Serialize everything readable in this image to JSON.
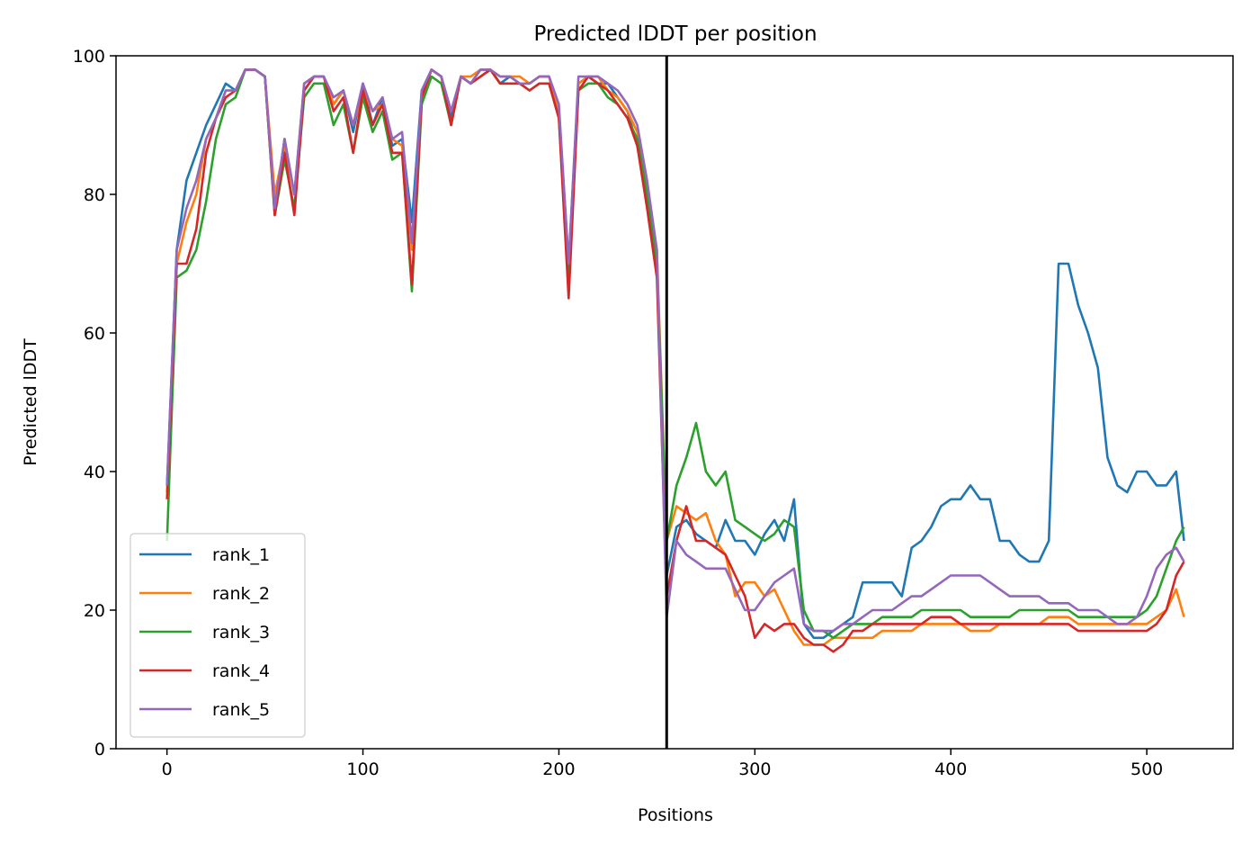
{
  "chart_data": {
    "type": "line",
    "title": "Predicted lDDT per position",
    "xlabel": "Positions",
    "ylabel": "Predicted lDDT",
    "xlim": [
      -26,
      544
    ],
    "ylim": [
      0,
      100
    ],
    "xticks": [
      0,
      100,
      200,
      300,
      400,
      500
    ],
    "yticks": [
      0,
      20,
      40,
      60,
      80,
      100
    ],
    "grid": false,
    "legend_position": "lower-left",
    "vline_x": 255,
    "x": [
      0,
      5,
      10,
      15,
      20,
      25,
      30,
      35,
      40,
      45,
      50,
      55,
      60,
      65,
      70,
      75,
      80,
      85,
      90,
      95,
      100,
      105,
      110,
      115,
      120,
      125,
      130,
      135,
      140,
      145,
      150,
      155,
      160,
      165,
      170,
      175,
      180,
      185,
      190,
      195,
      200,
      205,
      210,
      215,
      220,
      225,
      230,
      235,
      240,
      245,
      250,
      255,
      260,
      265,
      270,
      275,
      280,
      285,
      290,
      295,
      300,
      305,
      310,
      315,
      320,
      325,
      330,
      335,
      340,
      345,
      350,
      355,
      360,
      365,
      370,
      375,
      380,
      385,
      390,
      395,
      400,
      405,
      410,
      415,
      420,
      425,
      430,
      435,
      440,
      445,
      450,
      455,
      460,
      465,
      470,
      475,
      480,
      485,
      490,
      495,
      500,
      505,
      510,
      515,
      519
    ],
    "series": [
      {
        "name": "rank_1",
        "color": "#1f77b4",
        "values": [
          38,
          72,
          82,
          86,
          90,
          93,
          96,
          95,
          98,
          98,
          97,
          78,
          88,
          80,
          95,
          97,
          97,
          93,
          95,
          89,
          96,
          90,
          94,
          87,
          88,
          76,
          95,
          98,
          97,
          91,
          97,
          96,
          98,
          98,
          96,
          97,
          96,
          96,
          97,
          97,
          92,
          70,
          96,
          97,
          96,
          96,
          94,
          92,
          87,
          80,
          70,
          25,
          32,
          33,
          31,
          30,
          29,
          33,
          30,
          30,
          28,
          31,
          33,
          30,
          36,
          18,
          16,
          16,
          17,
          18,
          19,
          24,
          24,
          24,
          24,
          22,
          29,
          30,
          32,
          35,
          36,
          36,
          38,
          36,
          36,
          30,
          30,
          28,
          27,
          27,
          30,
          70,
          70,
          64,
          60,
          55,
          42,
          38,
          37,
          40,
          40,
          38,
          38,
          40,
          30
        ]
      },
      {
        "name": "rank_2",
        "color": "#ff7f0e",
        "values": [
          37,
          70,
          76,
          80,
          88,
          91,
          95,
          95,
          98,
          98,
          97,
          80,
          87,
          80,
          96,
          97,
          97,
          93,
          95,
          90,
          95,
          92,
          93,
          88,
          87,
          72,
          94,
          98,
          97,
          92,
          97,
          97,
          98,
          98,
          97,
          97,
          97,
          96,
          97,
          97,
          92,
          70,
          96,
          97,
          97,
          95,
          94,
          92,
          89,
          81,
          72,
          30,
          35,
          34,
          33,
          34,
          30,
          28,
          22,
          24,
          24,
          22,
          23,
          20,
          17,
          15,
          15,
          15,
          16,
          16,
          16,
          16,
          16,
          17,
          17,
          17,
          17,
          18,
          18,
          18,
          18,
          18,
          17,
          17,
          17,
          18,
          18,
          18,
          18,
          18,
          19,
          19,
          19,
          18,
          18,
          18,
          18,
          18,
          18,
          18,
          18,
          19,
          20,
          23,
          19
        ]
      },
      {
        "name": "rank_3",
        "color": "#2ca02c",
        "values": [
          30,
          68,
          69,
          72,
          79,
          88,
          93,
          94,
          98,
          98,
          97,
          77,
          85,
          78,
          94,
          96,
          96,
          90,
          93,
          86,
          94,
          89,
          92,
          85,
          86,
          66,
          93,
          97,
          96,
          90,
          97,
          96,
          97,
          98,
          96,
          96,
          96,
          95,
          96,
          96,
          91,
          68,
          95,
          96,
          96,
          94,
          93,
          91,
          88,
          80,
          70,
          30,
          38,
          42,
          47,
          40,
          38,
          40,
          33,
          32,
          31,
          30,
          31,
          33,
          32,
          20,
          17,
          17,
          16,
          17,
          18,
          18,
          18,
          19,
          19,
          19,
          19,
          20,
          20,
          20,
          20,
          20,
          19,
          19,
          19,
          19,
          19,
          20,
          20,
          20,
          20,
          20,
          20,
          19,
          19,
          19,
          19,
          19,
          19,
          19,
          20,
          22,
          26,
          30,
          32
        ]
      },
      {
        "name": "rank_4",
        "color": "#d62728",
        "values": [
          36,
          70,
          70,
          75,
          86,
          91,
          94,
          95,
          98,
          98,
          97,
          77,
          86,
          77,
          95,
          97,
          97,
          92,
          94,
          86,
          95,
          90,
          93,
          86,
          86,
          67,
          94,
          98,
          97,
          90,
          97,
          96,
          97,
          98,
          96,
          96,
          96,
          95,
          96,
          96,
          91,
          65,
          95,
          97,
          96,
          95,
          93,
          91,
          87,
          78,
          68,
          22,
          30,
          35,
          30,
          30,
          29,
          28,
          25,
          22,
          16,
          18,
          17,
          18,
          18,
          16,
          15,
          15,
          14,
          15,
          17,
          17,
          18,
          18,
          18,
          18,
          18,
          18,
          19,
          19,
          19,
          18,
          18,
          18,
          18,
          18,
          18,
          18,
          18,
          18,
          18,
          18,
          18,
          17,
          17,
          17,
          17,
          17,
          17,
          17,
          17,
          18,
          20,
          25,
          27
        ]
      },
      {
        "name": "rank_5",
        "color": "#9467bd",
        "values": [
          38,
          72,
          78,
          82,
          88,
          91,
          95,
          95,
          98,
          98,
          97,
          78,
          88,
          80,
          96,
          97,
          97,
          94,
          95,
          90,
          96,
          92,
          94,
          88,
          89,
          73,
          95,
          98,
          97,
          92,
          97,
          96,
          98,
          98,
          97,
          97,
          96,
          96,
          97,
          97,
          93,
          70,
          97,
          97,
          97,
          96,
          95,
          93,
          90,
          82,
          72,
          19,
          30,
          28,
          27,
          26,
          26,
          26,
          23,
          20,
          20,
          22,
          24,
          25,
          26,
          18,
          17,
          17,
          17,
          18,
          18,
          19,
          20,
          20,
          20,
          21,
          22,
          22,
          23,
          24,
          25,
          25,
          25,
          25,
          24,
          23,
          22,
          22,
          22,
          22,
          21,
          21,
          21,
          20,
          20,
          20,
          19,
          18,
          18,
          19,
          22,
          26,
          28,
          29,
          27
        ]
      }
    ],
    "legend": [
      "rank_1",
      "rank_2",
      "rank_3",
      "rank_4",
      "rank_5"
    ]
  }
}
